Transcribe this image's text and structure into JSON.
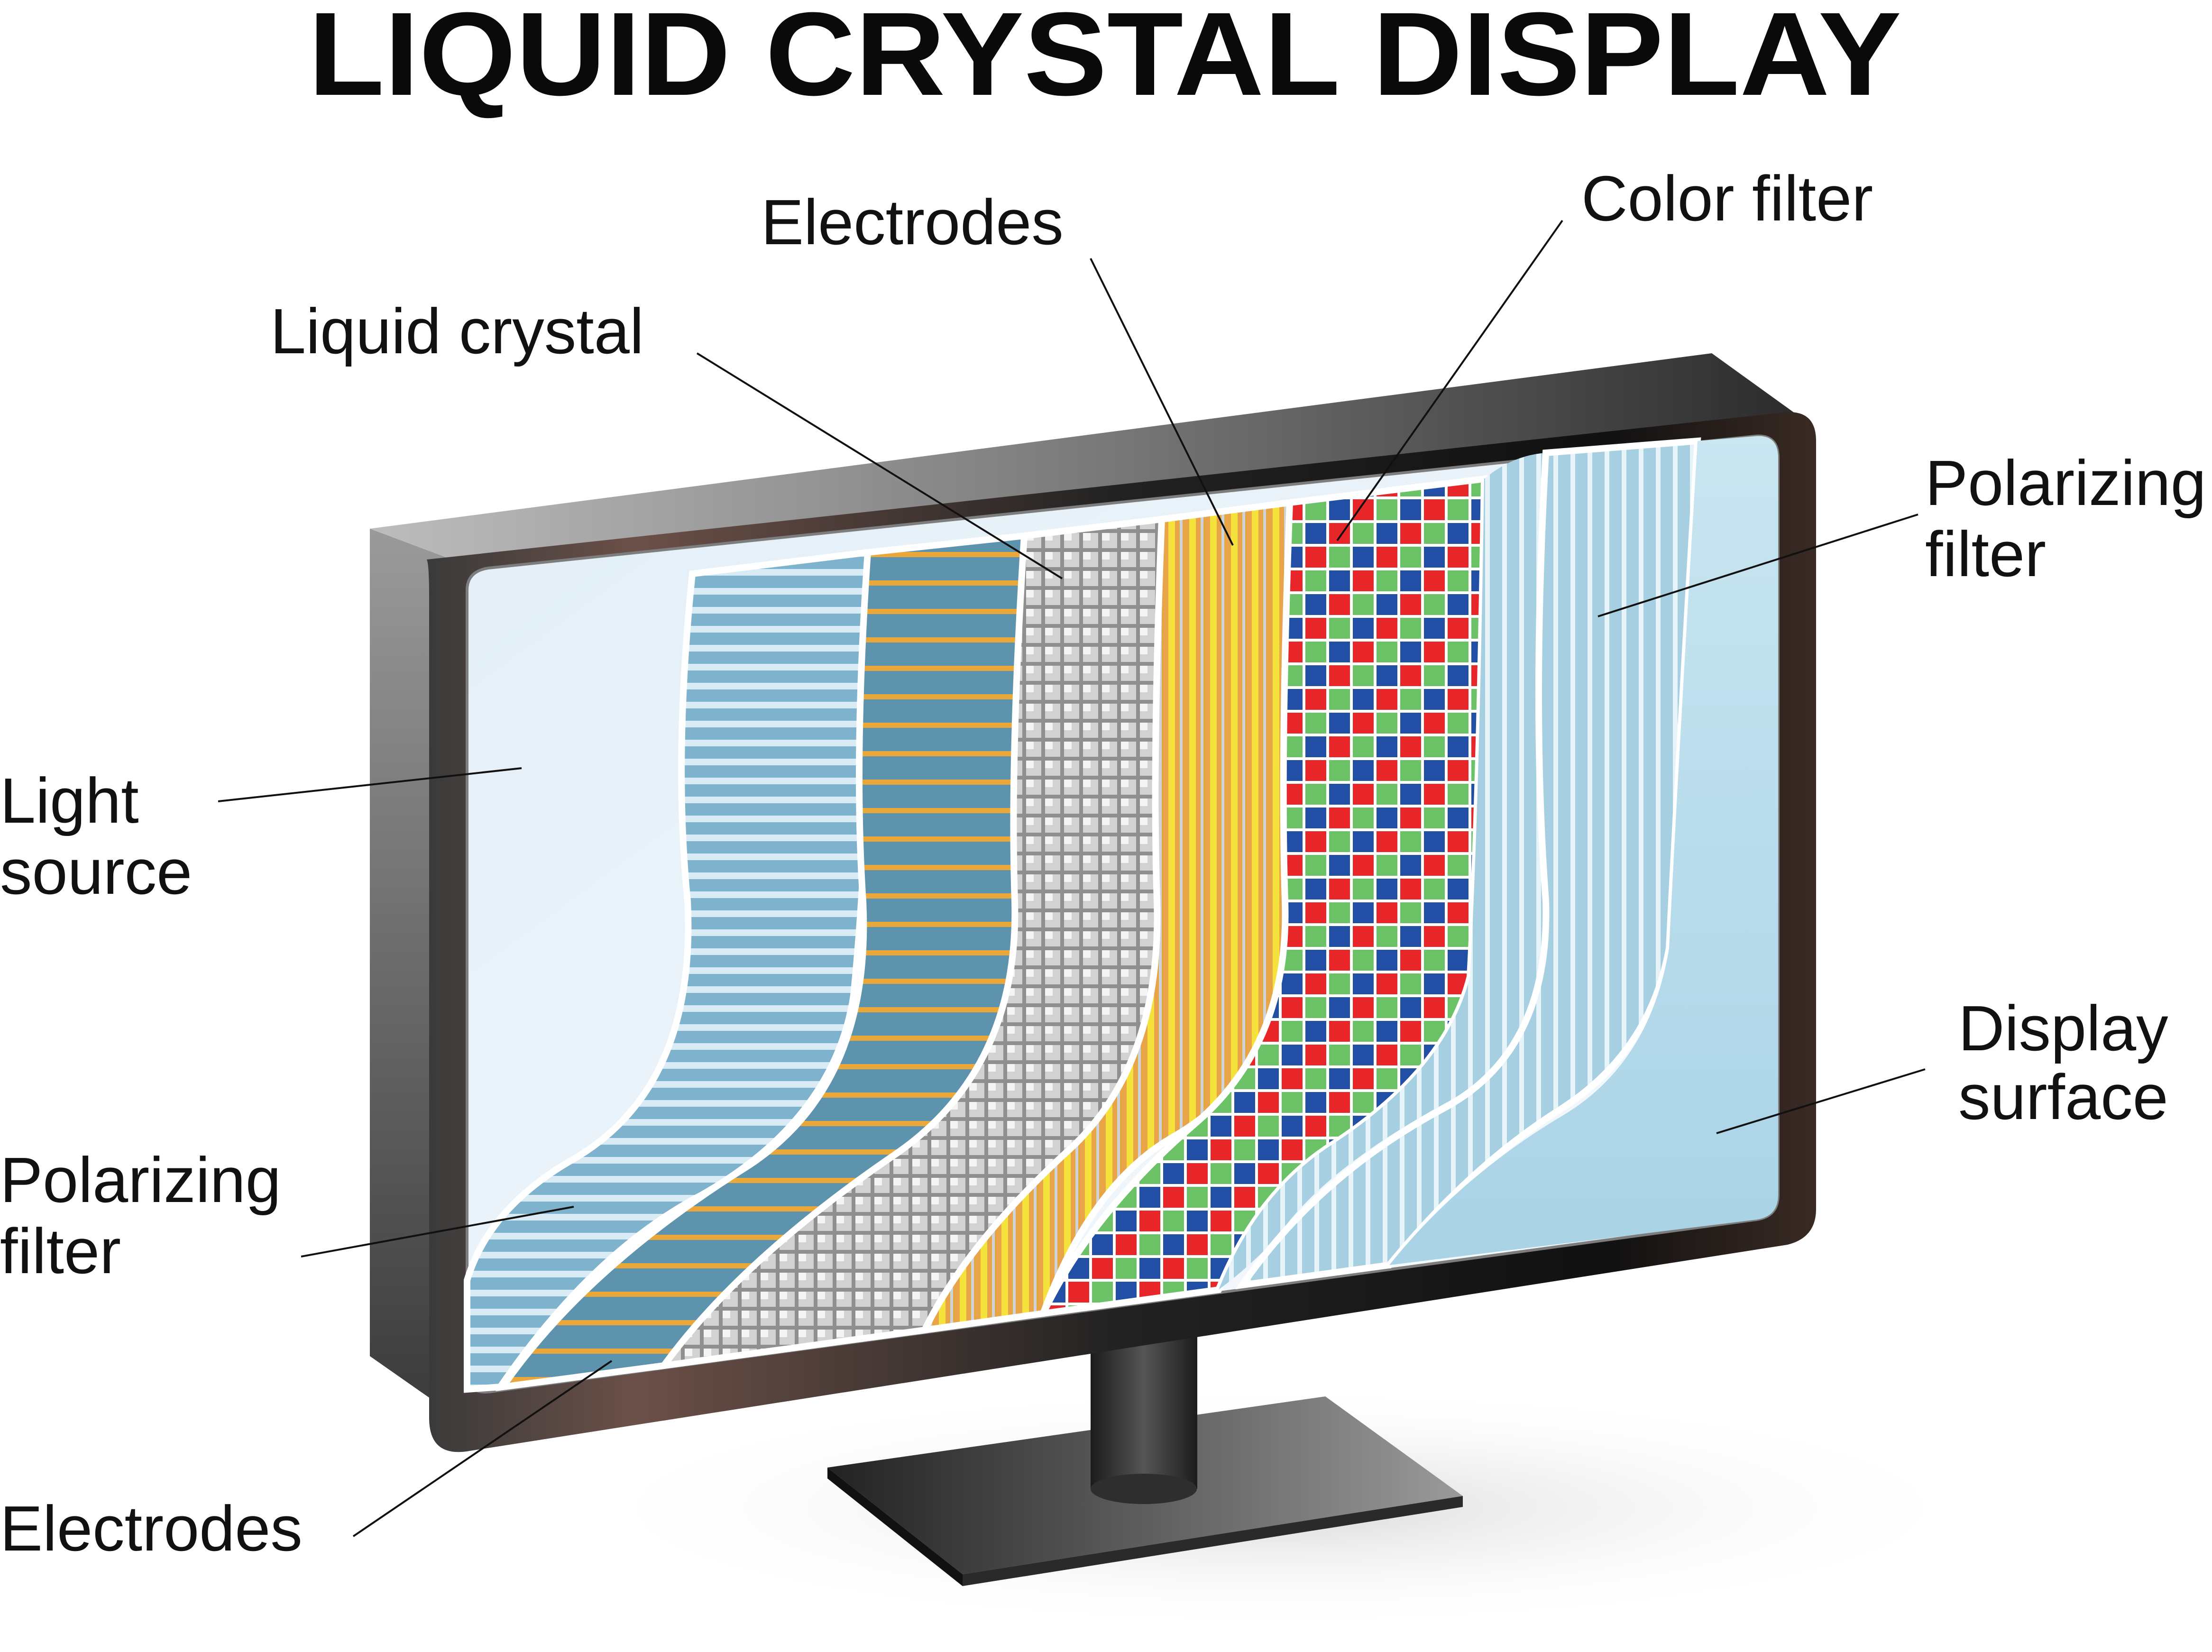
{
  "title": "LIQUID CRYSTAL DISPLAY",
  "labels": {
    "light_source": [
      "Light",
      "source"
    ],
    "polarizing_filter_back": [
      "Polarizing",
      "filter"
    ],
    "electrodes_back": "Electrodes",
    "liquid_crystal": "Liquid crystal",
    "electrodes_front": "Electrodes",
    "color_filter": "Color filter",
    "polarizing_filter_front": [
      "Polarizing",
      "filter"
    ],
    "display_surface": [
      "Display",
      "surface"
    ]
  },
  "colors": {
    "bezel_dark": "#1a1a1a",
    "bezel_light": "#8a8a8a",
    "light_source": "#eef5fb",
    "polarizer": "#8fbfd9",
    "electrode_stripe": "#e8a93a",
    "electrode_base": "#5d93ad",
    "liquid_crystal": "#9a9a9a",
    "front_electrode": "#f2d23a",
    "pixel_red": "#e8262a",
    "pixel_green": "#6cc267",
    "pixel_blue": "#214fa6",
    "display_surface": "#b8dcea"
  }
}
